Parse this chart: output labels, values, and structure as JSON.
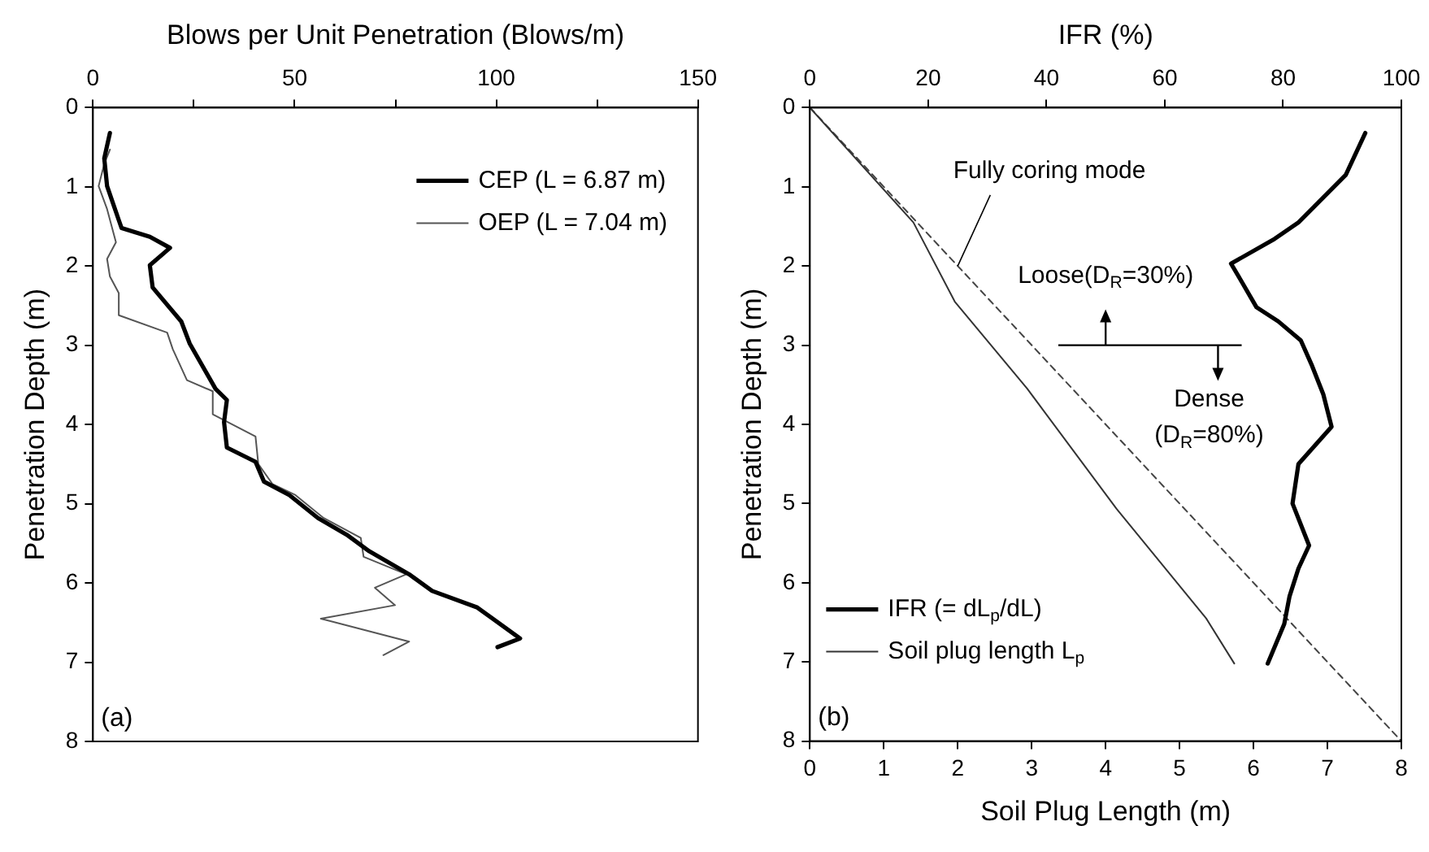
{
  "chart_data": [
    {
      "type": "line",
      "xlabel": "Blows per Unit Penetration (Blows/m)",
      "ylabel": "Penetration Depth (m)",
      "xlim": [
        0,
        150
      ],
      "xticks": [
        0,
        {
          "value": 25,
          "label": null
        },
        50,
        {
          "value": 75,
          "label": null
        },
        100,
        {
          "value": 125,
          "label": null
        },
        150
      ],
      "ylim": [
        8,
        0
      ],
      "yticks": [
        0,
        1,
        2,
        3,
        4,
        5,
        6,
        7,
        8
      ],
      "grid": false,
      "legend": "top right",
      "series": [
        {
          "name": "CEP (L = 6.87 m)",
          "color": "#000000",
          "x": [
            4.2,
            2.8,
            3.5,
            6.4,
            7.1,
            14.1,
            19.1,
            14.1,
            14.8,
            21.9,
            24.0,
            30.4,
            33.2,
            32.5,
            33.2,
            40.3,
            42.4,
            48.7,
            55.8,
            62.9,
            68.5,
            78.4,
            84.1,
            95.3,
            105.9,
            100.3
          ],
          "values": [
            0.32,
            0.64,
            0.99,
            1.42,
            1.52,
            1.63,
            1.77,
            1.99,
            2.27,
            2.7,
            2.98,
            3.55,
            3.69,
            3.97,
            4.29,
            4.47,
            4.72,
            4.89,
            5.18,
            5.39,
            5.6,
            5.89,
            6.1,
            6.31,
            6.7,
            6.81
          ]
        },
        {
          "name": "OEP (L = 7.04 m)",
          "color": "#555555",
          "x": [
            4.2,
            2.8,
            1.4,
            3.5,
            5.7,
            3.5,
            4.2,
            6.4,
            6.4,
            18.4,
            19.8,
            23.3,
            29.7,
            29.7,
            40.3,
            41.0,
            44.5,
            50.2,
            57.2,
            66.4,
            67.1,
            77.7,
            69.9,
            74.9,
            56.5,
            78.4,
            72.0
          ],
          "values": [
            0.53,
            0.71,
            0.99,
            1.28,
            1.7,
            1.91,
            2.13,
            2.34,
            2.62,
            2.84,
            3.05,
            3.44,
            3.58,
            3.87,
            4.15,
            4.5,
            4.75,
            4.89,
            5.18,
            5.43,
            5.67,
            5.89,
            6.06,
            6.28,
            6.45,
            6.74,
            6.91
          ]
        }
      ],
      "annotations": [
        "(a)"
      ]
    },
    {
      "type": "line",
      "xlabel": "Soil Plug Length (m)",
      "x2label": "IFR (%)",
      "ylabel": "Penetration Depth (m)",
      "xlim": [
        0,
        8
      ],
      "xticks": [
        0,
        1,
        2,
        3,
        4,
        5,
        6,
        7,
        8
      ],
      "x2lim": [
        0,
        100
      ],
      "x2ticks": [
        0,
        20,
        40,
        60,
        80,
        100
      ],
      "ylim": [
        8,
        0
      ],
      "yticks": [
        0,
        1,
        2,
        3,
        4,
        5,
        6,
        7,
        8
      ],
      "grid": false,
      "legend": "bottom left",
      "series": [
        {
          "name": "IFR (= dL$_{p}$/dL)",
          "color": "#000000",
          "axis": "x2",
          "x": [
            93.9,
            90.6,
            82.6,
            78.3,
            71.2,
            72.7,
            75.5,
            79.2,
            83.0,
            84.9,
            86.8,
            88.2,
            82.6,
            81.6,
            84.4,
            82.6,
            81.1,
            80.2,
            77.4
          ],
          "values": [
            0.32,
            0.85,
            1.45,
            1.67,
            1.97,
            2.16,
            2.52,
            2.7,
            2.94,
            3.26,
            3.62,
            4.03,
            4.5,
            5.0,
            5.53,
            5.82,
            6.17,
            6.52,
            7.02
          ]
        },
        {
          "name": "Soil plug length L$_{p}$",
          "color": "#333333",
          "x": [
            0,
            1.4,
            1.96,
            2.94,
            4.15,
            5.36,
            5.74
          ],
          "values": [
            0,
            1.45,
            2.45,
            3.55,
            5.07,
            6.45,
            7.02
          ]
        },
        {
          "color": "#444444",
          "line_style": "dashed",
          "x": [
            0,
            8
          ],
          "values": [
            0,
            8
          ]
        }
      ],
      "ref_lines": [
        {
          "axis": "y",
          "value": 3,
          "color": "#000000"
        }
      ],
      "annotations": [
        "(b)",
        {
          "text": "Fully coring mode",
          "x": 2,
          "y": 2
        },
        "Loose(D$_{R}$=30%)",
        "Dense (D$_{R}$=80%)"
      ]
    }
  ]
}
